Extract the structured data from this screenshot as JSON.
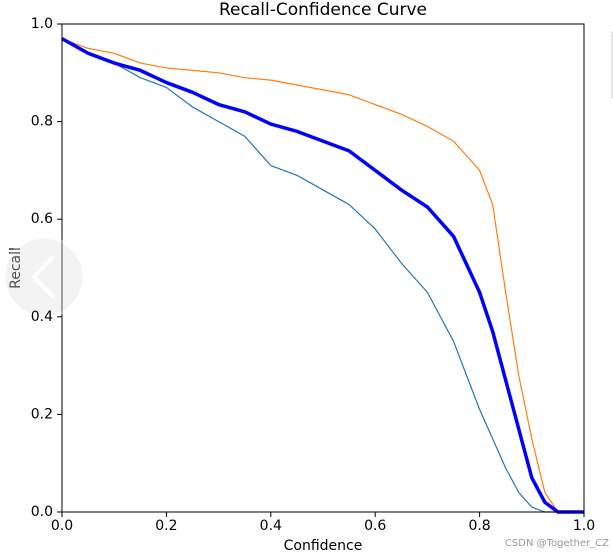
{
  "chart_data": {
    "type": "line",
    "title": "Recall-Confidence Curve",
    "xlabel": "Confidence",
    "ylabel": "Recall",
    "x": [
      0,
      0.05,
      0.1,
      0.15,
      0.2,
      0.25,
      0.3,
      0.35,
      0.4,
      0.45,
      0.5,
      0.55,
      0.6,
      0.65,
      0.7,
      0.75,
      0.8,
      0.825,
      0.85,
      0.875,
      0.9,
      0.925,
      0.95,
      1
    ],
    "series": [
      {
        "color": "#1f77b4",
        "line_width": 1.2,
        "values": [
          0.97,
          0.94,
          0.92,
          0.89,
          0.87,
          0.83,
          0.8,
          0.77,
          0.71,
          0.69,
          0.66,
          0.63,
          0.58,
          0.51,
          0.45,
          0.35,
          0.21,
          0.15,
          0.09,
          0.04,
          0.01,
          0,
          0,
          0
        ]
      },
      {
        "color": "#ff7f0e",
        "line_width": 1.2,
        "values": [
          0.97,
          0.95,
          0.94,
          0.92,
          0.91,
          0.905,
          0.9,
          0.89,
          0.885,
          0.875,
          0.865,
          0.855,
          0.835,
          0.815,
          0.79,
          0.76,
          0.7,
          0.63,
          0.45,
          0.28,
          0.15,
          0.04,
          0,
          0
        ]
      },
      {
        "color": "#0000ff",
        "line_width": 3.5,
        "values": [
          0.97,
          0.94,
          0.92,
          0.905,
          0.88,
          0.86,
          0.835,
          0.82,
          0.795,
          0.78,
          0.76,
          0.74,
          0.7,
          0.66,
          0.625,
          0.565,
          0.45,
          0.37,
          0.27,
          0.17,
          0.07,
          0.02,
          0,
          0
        ]
      }
    ],
    "xlim": [
      0,
      1
    ],
    "ylim": [
      0,
      1
    ],
    "xticks": [
      {
        "value": 0,
        "label": "0.0"
      },
      0.2,
      0.4,
      0.6,
      0.8,
      {
        "value": 1,
        "label": "1.0"
      }
    ],
    "yticks": [
      {
        "value": 0,
        "label": "0.0"
      },
      0.2,
      0.4,
      0.6,
      0.8,
      {
        "value": 1,
        "label": "1.0"
      }
    ],
    "grid": false,
    "watermark": "CSDN @Together_CZ"
  }
}
